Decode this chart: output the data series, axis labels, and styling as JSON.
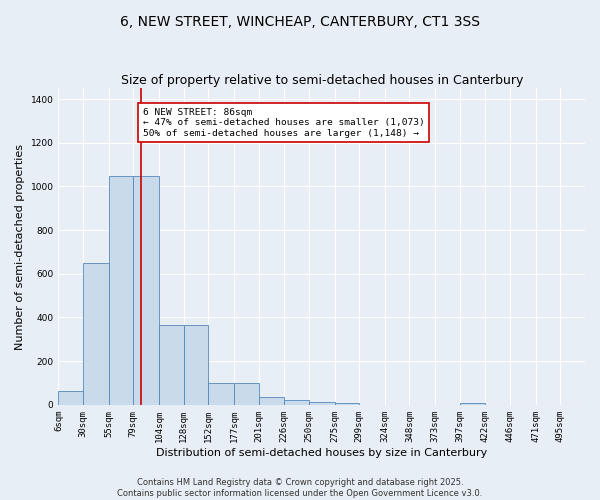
{
  "title": "6, NEW STREET, WINCHEAP, CANTERBURY, CT1 3SS",
  "subtitle": "Size of property relative to semi-detached houses in Canterbury",
  "xlabel": "Distribution of semi-detached houses by size in Canterbury",
  "ylabel": "Number of semi-detached properties",
  "footer_line1": "Contains HM Land Registry data © Crown copyright and database right 2025.",
  "footer_line2": "Contains public sector information licensed under the Open Government Licence v3.0.",
  "bin_labels": [
    "6sqm",
    "30sqm",
    "55sqm",
    "79sqm",
    "104sqm",
    "128sqm",
    "152sqm",
    "177sqm",
    "201sqm",
    "226sqm",
    "250sqm",
    "275sqm",
    "299sqm",
    "324sqm",
    "348sqm",
    "373sqm",
    "397sqm",
    "422sqm",
    "446sqm",
    "471sqm",
    "495sqm"
  ],
  "bin_edges": [
    6,
    30,
    55,
    79,
    104,
    128,
    152,
    177,
    201,
    226,
    250,
    275,
    299,
    324,
    348,
    373,
    397,
    422,
    446,
    471,
    495
  ],
  "bar_heights": [
    65,
    650,
    1050,
    1050,
    365,
    365,
    100,
    100,
    35,
    20,
    15,
    10,
    0,
    0,
    0,
    0,
    10,
    0,
    0,
    0,
    0
  ],
  "bar_color": "#c9daea",
  "bar_edge_color": "#5588bb",
  "property_size": 86,
  "red_line_color": "#cc0000",
  "annotation_text": "6 NEW STREET: 86sqm\n← 47% of semi-detached houses are smaller (1,073)\n50% of semi-detached houses are larger (1,148) →",
  "annotation_box_color": "#ffffff",
  "annotation_border_color": "#cc0000",
  "ylim": [
    0,
    1450
  ],
  "yticks": [
    0,
    200,
    400,
    600,
    800,
    1000,
    1200,
    1400
  ],
  "bg_color": "#e8eef5",
  "plot_bg_color": "#e8eef5",
  "grid_color": "#ffffff",
  "title_fontsize": 10,
  "subtitle_fontsize": 9,
  "axis_label_fontsize": 8,
  "tick_fontsize": 6.5,
  "footer_fontsize": 6,
  "ylabel_fontsize": 8
}
